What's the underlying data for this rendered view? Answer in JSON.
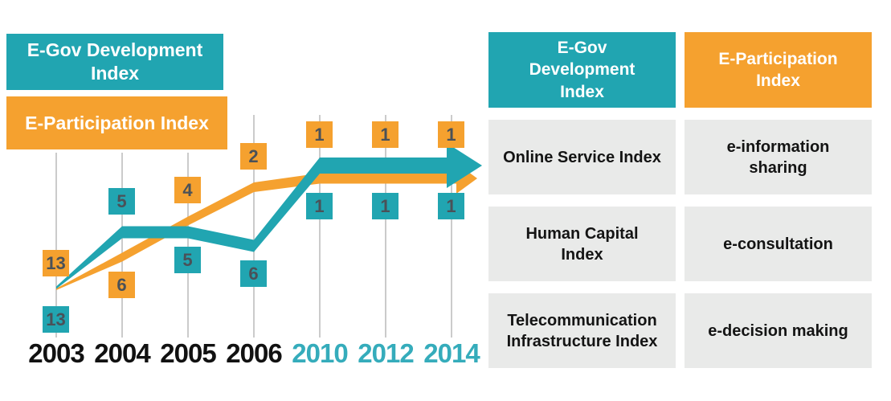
{
  "chart": {
    "legend": [
      {
        "label": "E-Gov Development Index",
        "color": "#21A5B1"
      },
      {
        "label": "E-Participation Index",
        "color": "#F5A12F"
      }
    ]
  },
  "chart_data": {
    "type": "line",
    "title": "",
    "xlabel": "",
    "ylabel": "",
    "categories": [
      "2003",
      "2004",
      "2005",
      "2006",
      "2010",
      "2012",
      "2014"
    ],
    "category_colors": [
      "#111111",
      "#111111",
      "#111111",
      "#111111",
      "#35ACBB",
      "#35ACBB",
      "#35ACBB"
    ],
    "series": [
      {
        "name": "E-Gov Development Index",
        "key": "egdi",
        "color": "#21A5B1",
        "values": [
          13,
          5,
          5,
          6,
          1,
          1,
          1
        ]
      },
      {
        "name": "E-Participation Index",
        "key": "epi",
        "color": "#F5A12F",
        "values": [
          13,
          6,
          4,
          2,
          1,
          1,
          1
        ]
      }
    ],
    "value_meaning": "rank",
    "grid": "vertical-gridlines",
    "gridline_color": "#CBCBCB",
    "legend_position": "top-left",
    "chip_text_color": "#4A5158"
  },
  "panel": {
    "item_bg": "#E9EAE9",
    "columns": [
      {
        "header": "E-Gov Development Index",
        "color": "#21A5B1",
        "items": [
          "Online Service Index",
          "Human Capital Index",
          "Telecommunication Infrastructure Index"
        ]
      },
      {
        "header": "E-Participation Index",
        "color": "#F5A12F",
        "items": [
          "e-information sharing",
          "e-consultation",
          "e-decision making"
        ]
      }
    ]
  }
}
